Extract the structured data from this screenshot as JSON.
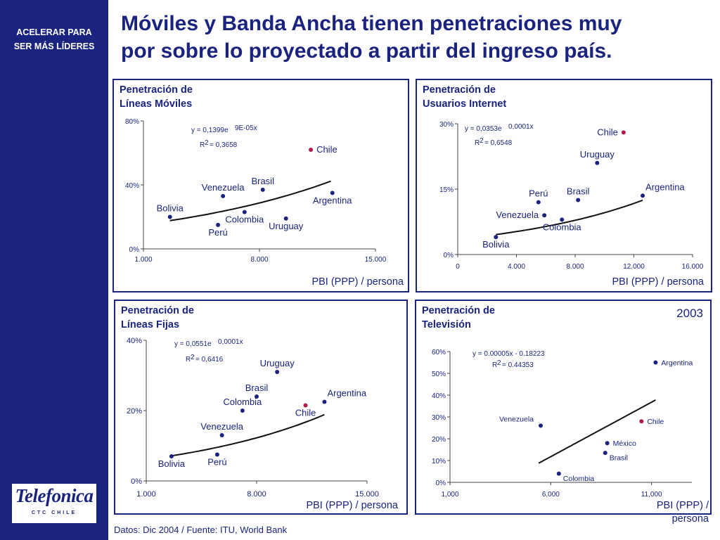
{
  "sidebar": {
    "tagline_line1": "ACELERAR PARA",
    "tagline_line2": "SER MÁS LÍDERES",
    "logo_text": "Telefonica",
    "logo_sub": "CTC CHILE"
  },
  "title": {
    "line1": "Móviles y Banda Ancha tienen penetraciones muy",
    "line2": "por sobre lo proyectado a partir del ingreso país."
  },
  "footer": "Datos: Dic 2004 / Fuente: ITU, World Bank",
  "colors": {
    "navy": "#1a237e",
    "chile": "#b0194a",
    "text": "#1a237e"
  },
  "chart_data": [
    {
      "id": "moviles",
      "type": "scatter",
      "title_line1": "Penetración de",
      "title_line2": "Líneas Móviles",
      "xlabel": "PBI (PPP) / persona",
      "xlim": [
        1000,
        15000
      ],
      "ylim": [
        0,
        0.8
      ],
      "xticks": [
        1000,
        8000,
        15000
      ],
      "xtick_labels": [
        "1.000",
        "8.000",
        "15.000"
      ],
      "yticks": [
        0,
        0.4,
        0.8
      ],
      "ytick_labels": [
        "0%",
        "40%",
        "80%"
      ],
      "eq_line1": "y = 0,1399e",
      "eq_exp": "9E-05x",
      "r2_label": "R",
      "r2_sup": "2",
      "r2_value": "= 0,3658",
      "trend": {
        "kind": "exp",
        "a": 0.1399,
        "b": 9e-05,
        "from": 2600,
        "to": 12300
      },
      "points": [
        {
          "name": "Bolivia",
          "x": 2600,
          "y": 0.2,
          "label": "Bolivia",
          "lpos": "above"
        },
        {
          "name": "Venezuela",
          "x": 5800,
          "y": 0.33,
          "label": "Venezuela",
          "lpos": "above"
        },
        {
          "name": "Brasil",
          "x": 8200,
          "y": 0.37,
          "label": "Brasil",
          "lpos": "above"
        },
        {
          "name": "Colombia",
          "x": 7100,
          "y": 0.23,
          "label": "Colombia",
          "lpos": "below"
        },
        {
          "name": "Perú",
          "x": 5500,
          "y": 0.15,
          "label": "Perú",
          "lpos": "below"
        },
        {
          "name": "Uruguay",
          "x": 9600,
          "y": 0.19,
          "label": "Uruguay",
          "lpos": "below"
        },
        {
          "name": "Chile",
          "x": 11100,
          "y": 0.62,
          "label": "Chile",
          "lpos": "right",
          "highlight": true
        },
        {
          "name": "Argentina",
          "x": 12400,
          "y": 0.35,
          "label": "Argentina",
          "lpos": "below"
        }
      ]
    },
    {
      "id": "internet",
      "type": "scatter",
      "title_line1": "Penetración de",
      "title_line2": "Usuarios Internet",
      "xlabel": "PBI (PPP) / persona",
      "xlim": [
        0,
        16000
      ],
      "ylim": [
        0,
        0.3
      ],
      "xticks": [
        0,
        4000,
        8000,
        12000,
        16000
      ],
      "xtick_labels": [
        "0",
        "4.000",
        "8.000",
        "12.000",
        "16.000"
      ],
      "yticks": [
        0,
        0.15,
        0.3
      ],
      "ytick_labels": [
        "0%",
        "15%",
        "30%"
      ],
      "eq_line1": "y = 0,0353e",
      "eq_exp": "0,0001x",
      "r2_label": "R",
      "r2_sup": "2",
      "r2_value": "= 0,6548",
      "trend": {
        "kind": "exp",
        "a": 0.0353,
        "b": 0.0001,
        "from": 2600,
        "to": 12600
      },
      "points": [
        {
          "name": "Bolivia",
          "x": 2600,
          "y": 0.04,
          "label": "Bolivia",
          "lpos": "below"
        },
        {
          "name": "Venezuela",
          "x": 5900,
          "y": 0.09,
          "label": "Venezuela",
          "lpos": "left"
        },
        {
          "name": "Perú",
          "x": 5500,
          "y": 0.12,
          "label": "Perú",
          "lpos": "above"
        },
        {
          "name": "Brasil",
          "x": 8200,
          "y": 0.125,
          "label": "Brasil",
          "lpos": "above"
        },
        {
          "name": "Colombia",
          "x": 7100,
          "y": 0.08,
          "label": "Colombia",
          "lpos": "below"
        },
        {
          "name": "Uruguay",
          "x": 9500,
          "y": 0.21,
          "label": "Uruguay",
          "lpos": "above"
        },
        {
          "name": "Chile",
          "x": 11300,
          "y": 0.28,
          "label": "Chile",
          "lpos": "left",
          "highlight": true
        },
        {
          "name": "Argentina",
          "x": 12600,
          "y": 0.135,
          "label": "Argentina",
          "lpos": "aboveright"
        }
      ]
    },
    {
      "id": "fijas",
      "type": "scatter",
      "title_line1": "Penetración de",
      "title_line2": "Líneas Fijas",
      "xlabel": "PBI (PPP) / persona",
      "xlim": [
        1000,
        15000
      ],
      "ylim": [
        0,
        0.4
      ],
      "xticks": [
        1000,
        8000,
        15000
      ],
      "xtick_labels": [
        "1.000",
        "8.000",
        "15.000"
      ],
      "yticks": [
        0,
        0.2,
        0.4
      ],
      "ytick_labels": [
        "0%",
        "20%",
        "40%"
      ],
      "eq_line1": "y = 0,0551e",
      "eq_exp": "0,0001x",
      "r2_label": "R",
      "r2_sup": "2",
      "r2_value": "= 0,6416",
      "trend": {
        "kind": "exp",
        "a": 0.0551,
        "b": 0.0001,
        "from": 2600,
        "to": 12300
      },
      "points": [
        {
          "name": "Bolivia",
          "x": 2600,
          "y": 0.07,
          "label": "Bolivia",
          "lpos": "below"
        },
        {
          "name": "Venezuela",
          "x": 5800,
          "y": 0.13,
          "label": "Venezuela",
          "lpos": "above"
        },
        {
          "name": "Perú",
          "x": 5500,
          "y": 0.075,
          "label": "Perú",
          "lpos": "below"
        },
        {
          "name": "Colombia",
          "x": 7100,
          "y": 0.2,
          "label": "Colombia",
          "lpos": "above"
        },
        {
          "name": "Brasil",
          "x": 8000,
          "y": 0.24,
          "label": "Brasil",
          "lpos": "above"
        },
        {
          "name": "Uruguay",
          "x": 9300,
          "y": 0.31,
          "label": "Uruguay",
          "lpos": "above"
        },
        {
          "name": "Chile",
          "x": 11100,
          "y": 0.215,
          "label": "Chile",
          "lpos": "below",
          "highlight": true
        },
        {
          "name": "Argentina",
          "x": 12300,
          "y": 0.225,
          "label": "Argentina",
          "lpos": "aboveright"
        }
      ]
    },
    {
      "id": "television",
      "type": "scatter",
      "title_line1": "Penetración de",
      "title_line2": "Televisión",
      "year": "2003",
      "xlabel_line1": "PBI (PPP) /",
      "xlabel_line2": "persona",
      "xlim": [
        1000,
        13000
      ],
      "ylim": [
        0,
        0.6
      ],
      "xticks": [
        1000,
        6000,
        11000
      ],
      "xtick_labels": [
        "1,000",
        "6,000",
        "11,000"
      ],
      "yticks": [
        0,
        0.1,
        0.2,
        0.3,
        0.4,
        0.5,
        0.6
      ],
      "ytick_labels": [
        "0%",
        "10%",
        "20%",
        "30%",
        "40%",
        "50%",
        "60%"
      ],
      "eq_line1": "y = 0.00005x - 0.18223",
      "eq_exp": "",
      "r2_label": "R",
      "r2_sup": "2",
      "r2_value": "= 0.44353",
      "trend": {
        "kind": "linear",
        "a": 5e-05,
        "b": -0.18223,
        "from": 5400,
        "to": 11200
      },
      "points": [
        {
          "name": "Venezuela",
          "x": 5500,
          "y": 0.26,
          "label": "Venezuela",
          "lpos": "upleft"
        },
        {
          "name": "Colombia",
          "x": 6400,
          "y": 0.04,
          "label": "Colombia",
          "lpos": "belowright"
        },
        {
          "name": "Brasil",
          "x": 8700,
          "y": 0.135,
          "label": "Brasil",
          "lpos": "belowright"
        },
        {
          "name": "México",
          "x": 8800,
          "y": 0.18,
          "label": "México",
          "lpos": "right"
        },
        {
          "name": "Chile",
          "x": 10500,
          "y": 0.28,
          "label": "Chile",
          "lpos": "right",
          "highlight": true
        },
        {
          "name": "Argentina",
          "x": 11200,
          "y": 0.55,
          "label": "Argentina",
          "lpos": "right"
        }
      ]
    }
  ]
}
